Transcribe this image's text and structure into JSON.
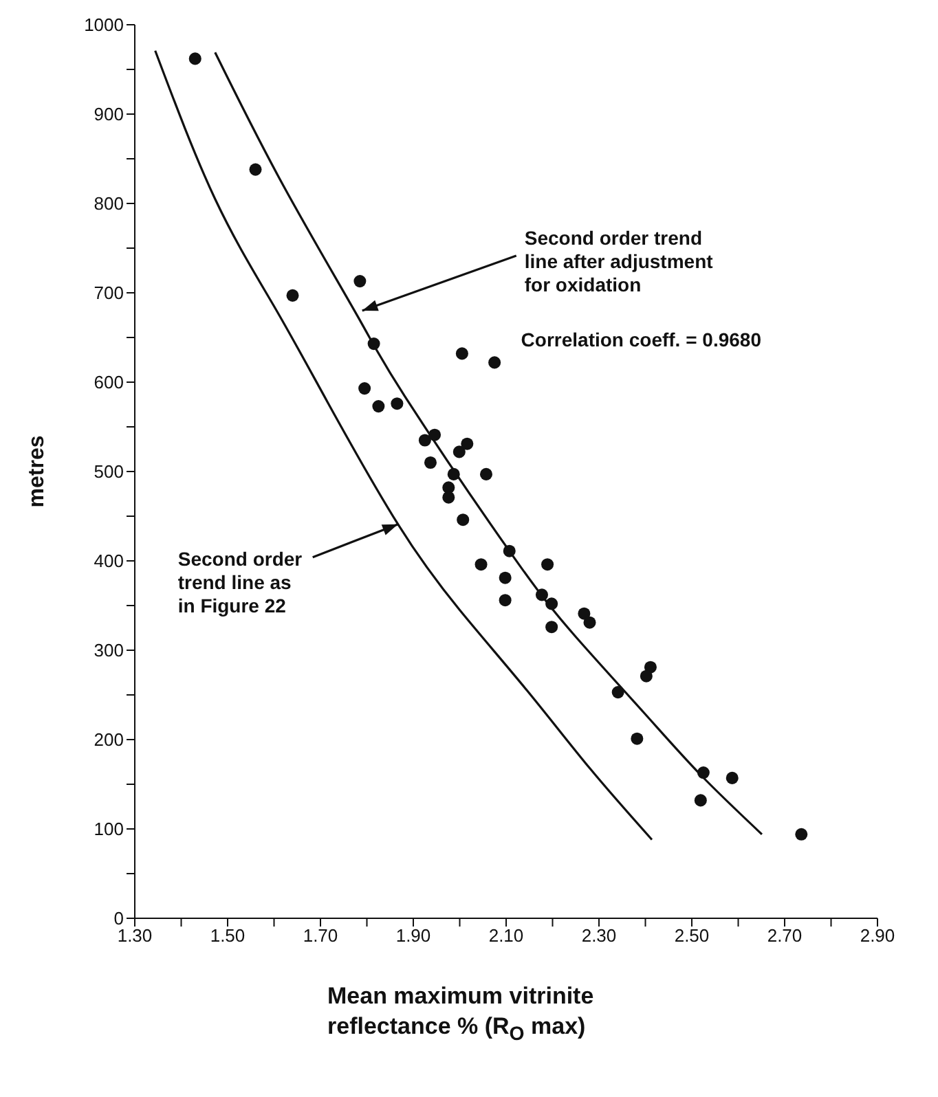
{
  "chart_data": {
    "type": "scatter",
    "ylabel": "metres",
    "xlabel": "Mean maximum vitrinite reflectance % (R$_{O}$ max)",
    "xlim": [
      1.3,
      2.9
    ],
    "xticks": [
      {
        "value": 1.3,
        "label": "1.30"
      },
      {
        "value": 1.4,
        "label": null
      },
      {
        "value": 1.5,
        "label": "1.50"
      },
      {
        "value": 1.6,
        "label": null
      },
      {
        "value": 1.7,
        "label": "1.70"
      },
      {
        "value": 1.8,
        "label": null
      },
      {
        "value": 1.9,
        "label": "1.90"
      },
      {
        "value": 2.0,
        "label": null
      },
      {
        "value": 2.1,
        "label": "2.10"
      },
      {
        "value": 2.2,
        "label": null
      },
      {
        "value": 2.3,
        "label": "2.30"
      },
      {
        "value": 2.4,
        "label": null
      },
      {
        "value": 2.5,
        "label": "2.50"
      },
      {
        "value": 2.6,
        "label": null
      },
      {
        "value": 2.7,
        "label": "2.70"
      },
      {
        "value": 2.8,
        "label": null
      },
      {
        "value": 2.9,
        "label": "2.90"
      }
    ],
    "ylim": [
      0,
      1000
    ],
    "yticks": [
      0,
      {
        "value": 50,
        "label": null
      },
      100,
      {
        "value": 150,
        "label": null
      },
      200,
      {
        "value": 250,
        "label": null
      },
      300,
      {
        "value": 350,
        "label": null
      },
      400,
      {
        "value": 450,
        "label": null
      },
      500,
      {
        "value": 550,
        "label": null
      },
      600,
      {
        "value": 650,
        "label": null
      },
      700,
      {
        "value": 750,
        "label": null
      },
      800,
      {
        "value": 850,
        "label": null
      },
      900,
      {
        "value": 950,
        "label": null
      },
      1000
    ],
    "series": [
      {
        "color": "#111111",
        "marker": "circle",
        "x": [
          1.43,
          1.56,
          1.64,
          1.785,
          1.815,
          1.795,
          1.825,
          1.865,
          2.005,
          2.075,
          1.925,
          1.946,
          1.937,
          1.999,
          2.016,
          1.987,
          2.057,
          1.976,
          1.976,
          2.007,
          2.107,
          2.046,
          2.189,
          2.098,
          2.098,
          2.177,
          2.198,
          2.198,
          2.268,
          2.28,
          2.411,
          2.402,
          2.341,
          2.382,
          2.525,
          2.587,
          2.519,
          2.736
        ],
        "values": [
          962,
          838,
          697,
          713,
          643,
          593,
          573,
          576,
          632,
          622,
          535,
          541,
          510,
          522,
          531,
          497,
          497,
          482,
          471,
          446,
          411,
          396,
          396,
          381,
          356,
          362,
          352,
          326,
          341,
          331,
          281,
          271,
          253,
          201,
          163,
          157,
          132,
          94
        ]
      },
      {
        "type": "line",
        "color": "#111111",
        "marker": "none",
        "x": [
          1.344,
          1.473,
          1.6,
          1.716,
          1.867,
          2.0,
          2.145,
          2.28,
          2.414
        ],
        "values": [
          971,
          805,
          685,
          577,
          441,
          345,
          255,
          168,
          88
        ]
      },
      {
        "type": "line",
        "color": "#111111",
        "marker": "none",
        "x": [
          1.473,
          1.62,
          1.782,
          1.882,
          2.107,
          2.25,
          2.397,
          2.52,
          2.651
        ],
        "values": [
          969,
          820,
          672,
          584,
          411,
          315,
          230,
          160,
          94
        ]
      }
    ],
    "annotations": [
      {
        "text": "Second order trend line after adjustment for oxidation",
        "x": 1.79,
        "y": 680
      },
      {
        "text": "Second order trend line as in Figure 22",
        "x": 1.867,
        "y": 441
      },
      "Correlation coeff. = 0.9680"
    ]
  }
}
